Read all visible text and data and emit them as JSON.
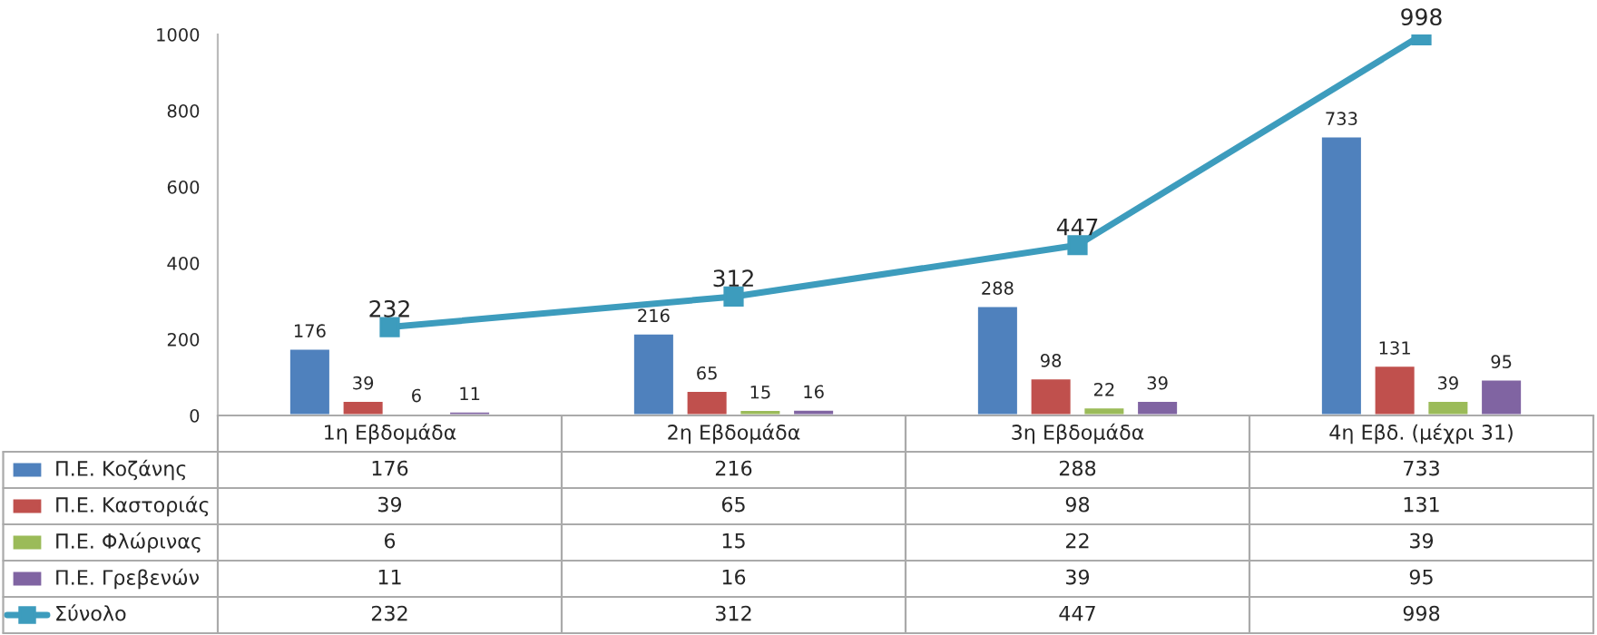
{
  "chart_data": {
    "type": "bar",
    "categories": [
      "1η Εβδομάδα",
      "2η Εβδομάδα",
      "3η Εβδομάδα",
      "4η Εβδ. (μέχρι 31)"
    ],
    "series": [
      {
        "name": "Π.Ε. Κοζάνης",
        "color": "#4f81bd",
        "values": [
          176,
          216,
          288,
          733
        ],
        "value_labels": [
          "176",
          "216",
          "288",
          "733"
        ]
      },
      {
        "name": "Π.Ε. Καστοριάς",
        "color": "#c0504d",
        "values": [
          39,
          65,
          98,
          131
        ],
        "value_labels": [
          "39",
          "65",
          "98",
          "131"
        ]
      },
      {
        "name": "Π.Ε. Φλώρινας",
        "color": "#9bbb59",
        "values": [
          6,
          15,
          22,
          39
        ],
        "value_labels": [
          "6",
          "15",
          "22",
          "39"
        ]
      },
      {
        "name": "Π.Ε. Γρεβενών",
        "color": "#8064a2",
        "values": [
          11,
          16,
          39,
          95
        ],
        "value_labels": [
          "11",
          "16",
          "39",
          "95"
        ]
      },
      {
        "name": "Σύνολο",
        "color": "#3d9cbd",
        "values": [
          232,
          312,
          447,
          998
        ],
        "value_labels": [
          "232",
          "312",
          "447",
          "998"
        ],
        "type": "line",
        "marker": "square"
      }
    ],
    "annotations": [
      "176",
      "216",
      "288",
      "733",
      "39",
      "65",
      "98",
      "131",
      "6",
      "15",
      "22",
      "39",
      "11",
      "16",
      "39",
      "95",
      "232",
      "312",
      "447",
      "998"
    ],
    "ylim": [
      0,
      1000
    ],
    "yticks": [
      0,
      200,
      400,
      600,
      800,
      1000
    ],
    "grid": false,
    "legend": "bottom"
  }
}
